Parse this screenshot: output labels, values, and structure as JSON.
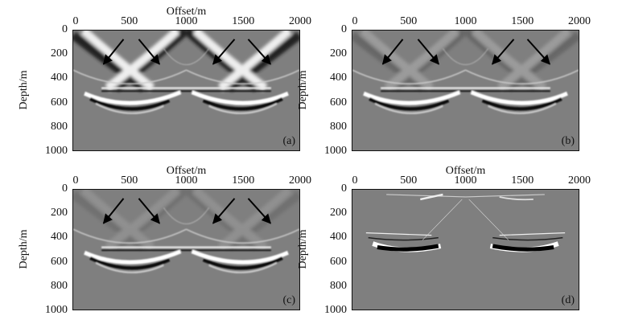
{
  "chart_data": {
    "type": "heatmap",
    "xlabel": "Offset/m",
    "ylabel": "Depth/m",
    "xlim": [
      0,
      2000
    ],
    "ylim": [
      1000,
      0
    ],
    "xticks": [
      "0",
      "500",
      "1000",
      "1500",
      "2000"
    ],
    "yticks": [
      "0",
      "200",
      "400",
      "600",
      "800",
      "1000"
    ],
    "colormap": "grayscale",
    "background_gray": "#7f7f7f",
    "panels": [
      {
        "label": "(a)",
        "show_xlabel": true,
        "arrows": true,
        "direct_wave_strength": 1.0,
        "reflector": "smooth"
      },
      {
        "label": "(b)",
        "show_xlabel": false,
        "arrows": true,
        "direct_wave_strength": 0.25,
        "reflector": "smooth"
      },
      {
        "label": "(c)",
        "show_xlabel": true,
        "arrows": true,
        "direct_wave_strength": 0.15,
        "reflector": "smooth"
      },
      {
        "label": "(d)",
        "show_xlabel": true,
        "arrows": false,
        "direct_wave_strength": 0.0,
        "reflector": "residual"
      }
    ],
    "arrows": [
      {
        "from": [
          445,
          73
        ],
        "to": [
          268,
          280
        ]
      },
      {
        "from": [
          580,
          73
        ],
        "to": [
          763,
          280
        ]
      },
      {
        "from": [
          1427,
          73
        ],
        "to": [
          1237,
          280
        ]
      },
      {
        "from": [
          1548,
          73
        ],
        "to": [
          1745,
          280
        ]
      }
    ]
  }
}
